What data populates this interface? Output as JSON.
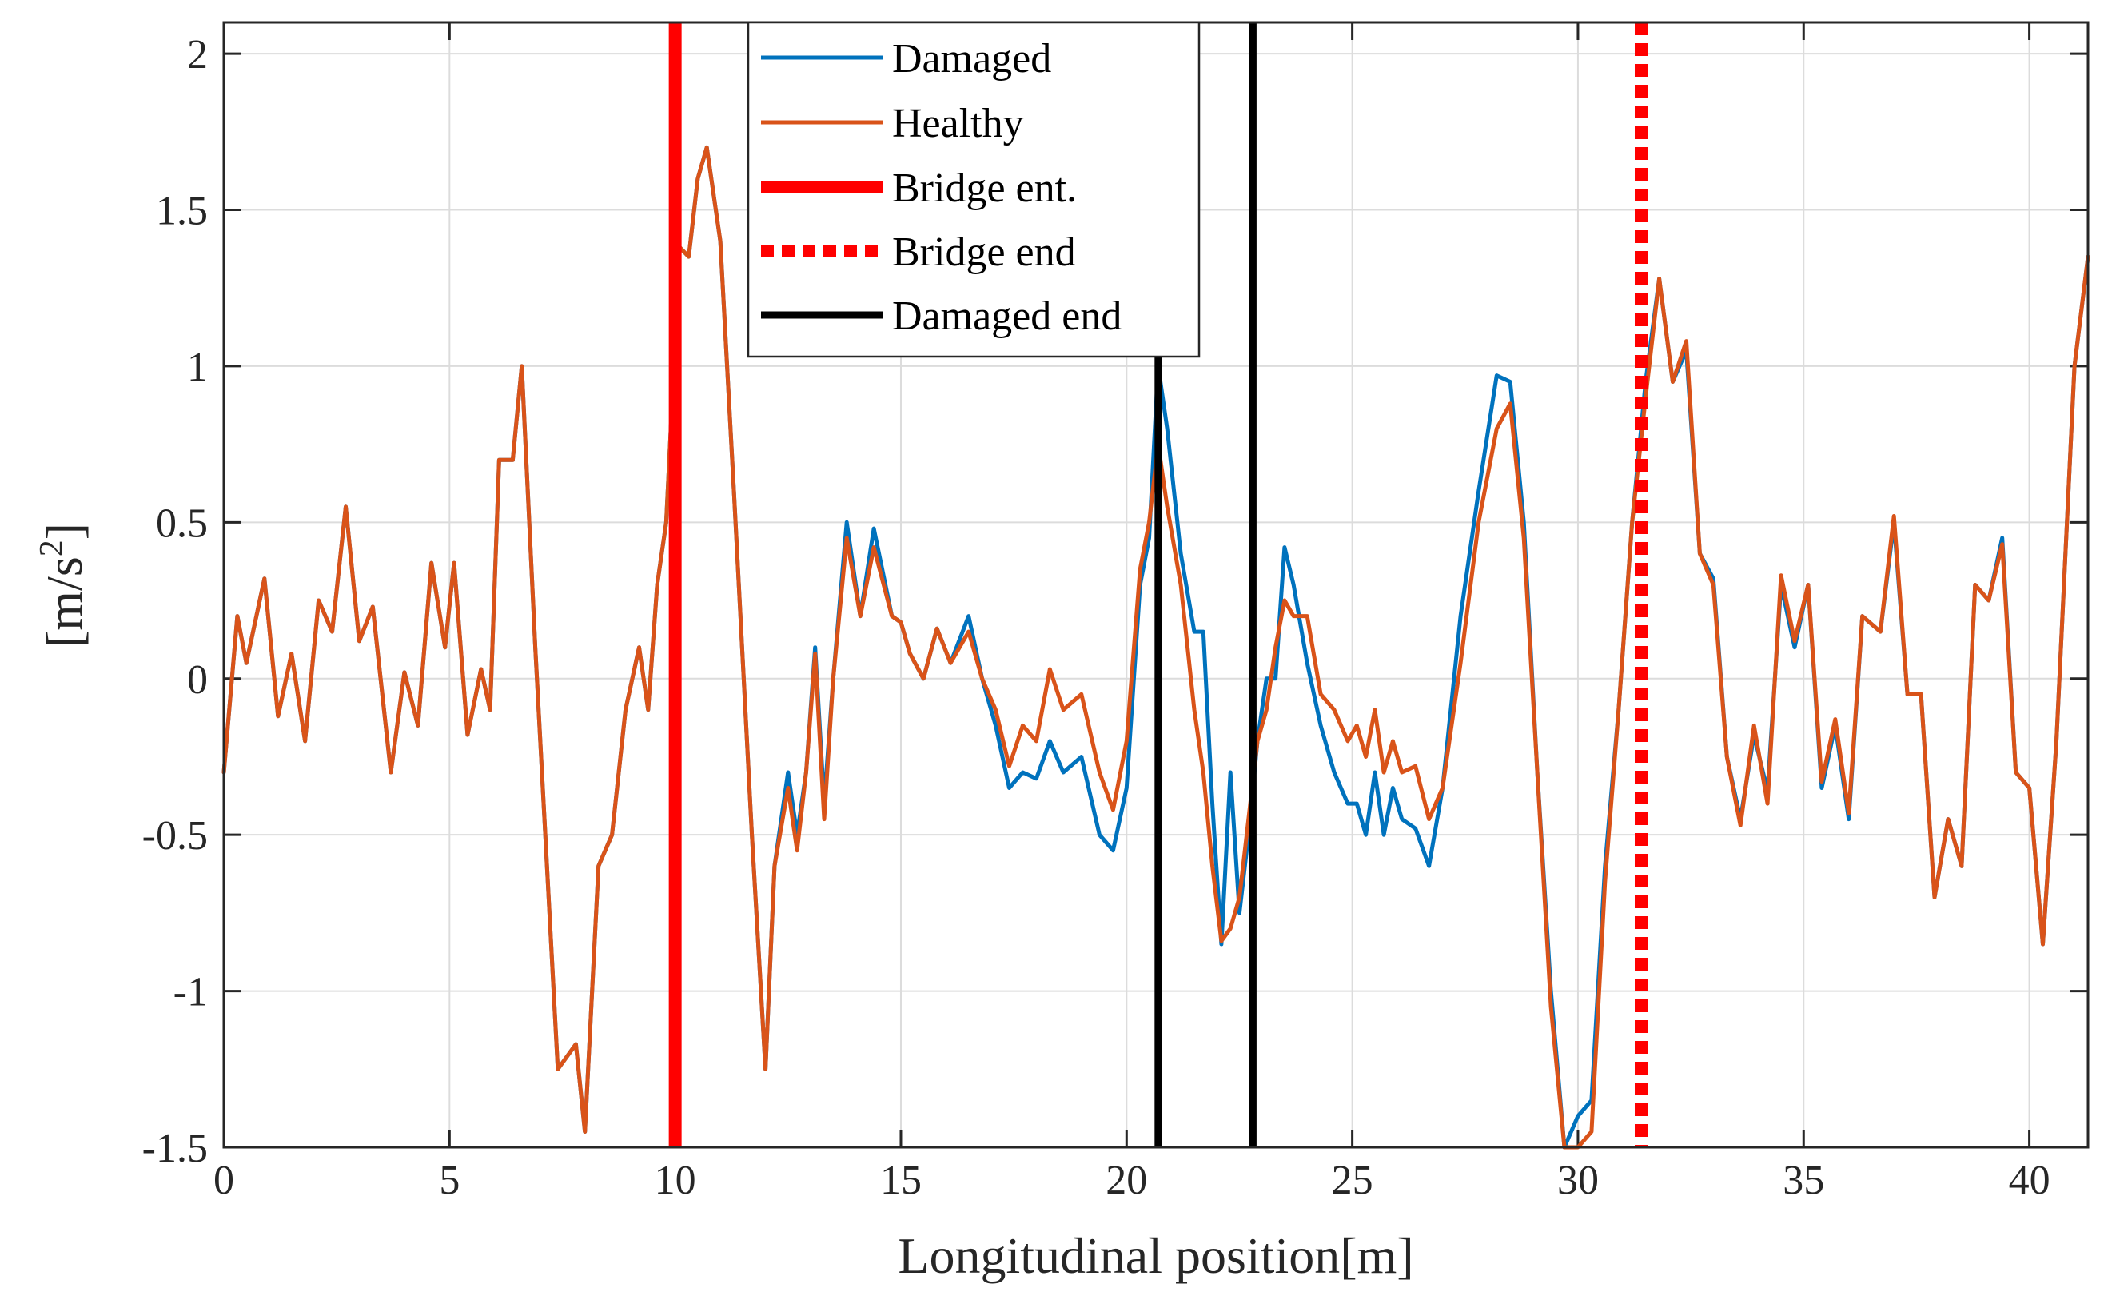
{
  "chart_data": {
    "type": "line",
    "xlabel": "Longitudinal position[m]",
    "ylabel": "[m/s",
    "ylabel_superscript": "2",
    "ylabel_close": "]",
    "xlim": [
      0,
      41.3
    ],
    "ylim": [
      -1.5,
      2.1
    ],
    "xticks": [
      0,
      5,
      10,
      15,
      20,
      25,
      30,
      35,
      40
    ],
    "xtick_labels": [
      "0",
      "5",
      "10",
      "15",
      "20",
      "25",
      "30",
      "35",
      "40"
    ],
    "yticks": [
      -1.5,
      -1,
      -0.5,
      0,
      0.5,
      1,
      1.5,
      2
    ],
    "ytick_labels": [
      "-1.5",
      "-1",
      "-0.5",
      "0",
      "0.5",
      "1",
      "1.5",
      "2"
    ],
    "grid": true,
    "legend_position": "top-center",
    "series": [
      {
        "name": "Damaged",
        "color": "#0072BD",
        "x": [
          0,
          0.3,
          0.5,
          0.9,
          1.2,
          1.5,
          1.8,
          2.1,
          2.4,
          2.7,
          3.0,
          3.3,
          3.7,
          4.0,
          4.3,
          4.6,
          4.9,
          5.1,
          5.4,
          5.7,
          5.9,
          6.1,
          6.4,
          6.6,
          6.9,
          7.4,
          7.8,
          8.0,
          8.3,
          8.6,
          8.9,
          9.2,
          9.4,
          9.6,
          9.8,
          10.1,
          10.3,
          10.5,
          10.7,
          11.0,
          11.3,
          11.7,
          12.0,
          12.2,
          12.5,
          12.7,
          12.9,
          13.1,
          13.3,
          13.5,
          13.8,
          14.1,
          14.4,
          14.8,
          15.0,
          15.2,
          15.5,
          15.8,
          16.1,
          16.5,
          16.8,
          17.1,
          17.4,
          17.7,
          18.0,
          18.3,
          18.6,
          19.0,
          19.4,
          19.7,
          20.0,
          20.3,
          20.5,
          20.7,
          20.9,
          21.2,
          21.5,
          21.7,
          21.9,
          22.1,
          22.3,
          22.5,
          22.7,
          22.9,
          23.1,
          23.3,
          23.5,
          23.7,
          24.0,
          24.3,
          24.6,
          24.9,
          25.1,
          25.3,
          25.5,
          25.7,
          25.9,
          26.1,
          26.4,
          26.7,
          27.0,
          27.4,
          27.8,
          28.2,
          28.5,
          28.8,
          29.1,
          29.4,
          29.7,
          30.0,
          30.3,
          30.6,
          30.9,
          31.2,
          31.5,
          31.8,
          32.1,
          32.4,
          32.7,
          33.0,
          33.3,
          33.6,
          33.9,
          34.2,
          34.5,
          34.8,
          35.1,
          35.4,
          35.7,
          36.0,
          36.3,
          36.7,
          37.0,
          37.3,
          37.6,
          37.9,
          38.2,
          38.5,
          38.8,
          39.1,
          39.4,
          39.7,
          40.0,
          40.3,
          40.6,
          41.0,
          41.3
        ],
        "y": [
          -0.3,
          0.2,
          0.05,
          0.32,
          -0.12,
          0.08,
          -0.2,
          0.25,
          0.15,
          0.55,
          0.12,
          0.23,
          -0.3,
          0.02,
          -0.15,
          0.37,
          0.1,
          0.37,
          -0.18,
          0.03,
          -0.1,
          0.7,
          0.7,
          1.0,
          0.1,
          -1.25,
          -1.17,
          -1.45,
          -0.6,
          -0.5,
          -0.1,
          0.1,
          -0.1,
          0.3,
          0.5,
          1.38,
          1.35,
          1.6,
          1.7,
          1.4,
          0.6,
          -0.5,
          -1.25,
          -0.6,
          -0.3,
          -0.5,
          -0.3,
          0.1,
          -0.4,
          0.0,
          0.5,
          0.2,
          0.48,
          0.2,
          0.18,
          0.08,
          0.0,
          0.16,
          0.05,
          0.2,
          0.0,
          -0.15,
          -0.35,
          -0.3,
          -0.32,
          -0.2,
          -0.3,
          -0.25,
          -0.5,
          -0.55,
          -0.35,
          0.3,
          0.45,
          1.0,
          0.8,
          0.4,
          0.15,
          0.15,
          -0.4,
          -0.85,
          -0.3,
          -0.75,
          -0.5,
          -0.2,
          0.0,
          0.0,
          0.42,
          0.3,
          0.05,
          -0.15,
          -0.3,
          -0.4,
          -0.4,
          -0.5,
          -0.3,
          -0.5,
          -0.35,
          -0.45,
          -0.48,
          -0.6,
          -0.35,
          0.2,
          0.6,
          0.97,
          0.95,
          0.5,
          -0.3,
          -1.0,
          -1.5,
          -1.4,
          -1.35,
          -0.6,
          -0.1,
          0.5,
          0.95,
          1.28,
          0.95,
          1.05,
          0.4,
          0.32,
          -0.25,
          -0.45,
          -0.18,
          -0.36,
          0.3,
          0.1,
          0.3,
          -0.35,
          -0.15,
          -0.45,
          0.2,
          0.15,
          0.5,
          -0.05,
          -0.05,
          -0.7,
          -0.45,
          -0.6,
          0.3,
          0.25,
          0.45,
          -0.3,
          -0.35,
          -0.85,
          -0.2,
          1.0,
          1.35
        ]
      },
      {
        "name": "Healthy",
        "color": "#D95319",
        "x": [
          0,
          0.3,
          0.5,
          0.9,
          1.2,
          1.5,
          1.8,
          2.1,
          2.4,
          2.7,
          3.0,
          3.3,
          3.7,
          4.0,
          4.3,
          4.6,
          4.9,
          5.1,
          5.4,
          5.7,
          5.9,
          6.1,
          6.4,
          6.6,
          6.9,
          7.4,
          7.8,
          8.0,
          8.3,
          8.6,
          8.9,
          9.2,
          9.4,
          9.6,
          9.8,
          10.1,
          10.3,
          10.5,
          10.7,
          11.0,
          11.3,
          11.7,
          12.0,
          12.2,
          12.5,
          12.7,
          12.9,
          13.1,
          13.3,
          13.5,
          13.8,
          14.1,
          14.4,
          14.8,
          15.0,
          15.2,
          15.5,
          15.8,
          16.1,
          16.5,
          16.8,
          17.1,
          17.4,
          17.7,
          18.0,
          18.3,
          18.6,
          19.0,
          19.4,
          19.7,
          20.0,
          20.3,
          20.5,
          20.7,
          20.9,
          21.2,
          21.5,
          21.7,
          21.9,
          22.1,
          22.3,
          22.5,
          22.7,
          22.9,
          23.1,
          23.3,
          23.5,
          23.7,
          24.0,
          24.3,
          24.6,
          24.9,
          25.1,
          25.3,
          25.5,
          25.7,
          25.9,
          26.1,
          26.4,
          26.7,
          27.0,
          27.4,
          27.8,
          28.2,
          28.5,
          28.8,
          29.1,
          29.4,
          29.7,
          30.0,
          30.3,
          30.6,
          30.9,
          31.2,
          31.5,
          31.8,
          32.1,
          32.4,
          32.7,
          33.0,
          33.3,
          33.6,
          33.9,
          34.2,
          34.5,
          34.8,
          35.1,
          35.4,
          35.7,
          36.0,
          36.3,
          36.7,
          37.0,
          37.3,
          37.6,
          37.9,
          38.2,
          38.5,
          38.8,
          39.1,
          39.4,
          39.7,
          40.0,
          40.3,
          40.6,
          41.0,
          41.3
        ],
        "y": [
          -0.3,
          0.2,
          0.05,
          0.32,
          -0.12,
          0.08,
          -0.2,
          0.25,
          0.15,
          0.55,
          0.12,
          0.23,
          -0.3,
          0.02,
          -0.15,
          0.37,
          0.1,
          0.37,
          -0.18,
          0.03,
          -0.1,
          0.7,
          0.7,
          1.0,
          0.1,
          -1.25,
          -1.17,
          -1.45,
          -0.6,
          -0.5,
          -0.1,
          0.1,
          -0.1,
          0.3,
          0.5,
          1.38,
          1.35,
          1.6,
          1.7,
          1.4,
          0.6,
          -0.5,
          -1.25,
          -0.6,
          -0.35,
          -0.55,
          -0.3,
          0.08,
          -0.45,
          0.0,
          0.45,
          0.2,
          0.42,
          0.2,
          0.18,
          0.08,
          0.0,
          0.16,
          0.05,
          0.15,
          0.0,
          -0.1,
          -0.28,
          -0.15,
          -0.2,
          0.03,
          -0.1,
          -0.05,
          -0.3,
          -0.42,
          -0.2,
          0.35,
          0.5,
          0.75,
          0.55,
          0.3,
          -0.1,
          -0.3,
          -0.6,
          -0.84,
          -0.8,
          -0.7,
          -0.45,
          -0.2,
          -0.1,
          0.1,
          0.25,
          0.2,
          0.2,
          -0.05,
          -0.1,
          -0.2,
          -0.15,
          -0.25,
          -0.1,
          -0.3,
          -0.2,
          -0.3,
          -0.28,
          -0.45,
          -0.35,
          0.05,
          0.5,
          0.8,
          0.88,
          0.45,
          -0.3,
          -1.05,
          -1.5,
          -1.5,
          -1.45,
          -0.65,
          -0.1,
          0.5,
          0.9,
          1.28,
          0.95,
          1.08,
          0.4,
          0.3,
          -0.25,
          -0.47,
          -0.15,
          -0.4,
          0.33,
          0.12,
          0.3,
          -0.33,
          -0.13,
          -0.43,
          0.2,
          0.15,
          0.52,
          -0.05,
          -0.05,
          -0.7,
          -0.45,
          -0.6,
          0.3,
          0.25,
          0.43,
          -0.3,
          -0.35,
          -0.85,
          -0.2,
          1.0,
          1.35
        ]
      }
    ],
    "vertical_lines": [
      {
        "name": "Bridge ent.",
        "x": 10.0,
        "color": "#FF0000",
        "style": "solid",
        "in_legend": true
      },
      {
        "name": "Bridge end",
        "x": 31.4,
        "color": "#FF0000",
        "style": "dotted",
        "in_legend": true
      },
      {
        "name": "Damaged end",
        "x": 20.7,
        "color": "#000000",
        "style": "solid",
        "in_legend": true
      },
      {
        "name": "",
        "x": 22.8,
        "color": "#000000",
        "style": "solid",
        "in_legend": false
      }
    ],
    "legend": [
      "Damaged",
      "Healthy",
      "Bridge ent.",
      "Bridge end",
      "Damaged end"
    ]
  }
}
